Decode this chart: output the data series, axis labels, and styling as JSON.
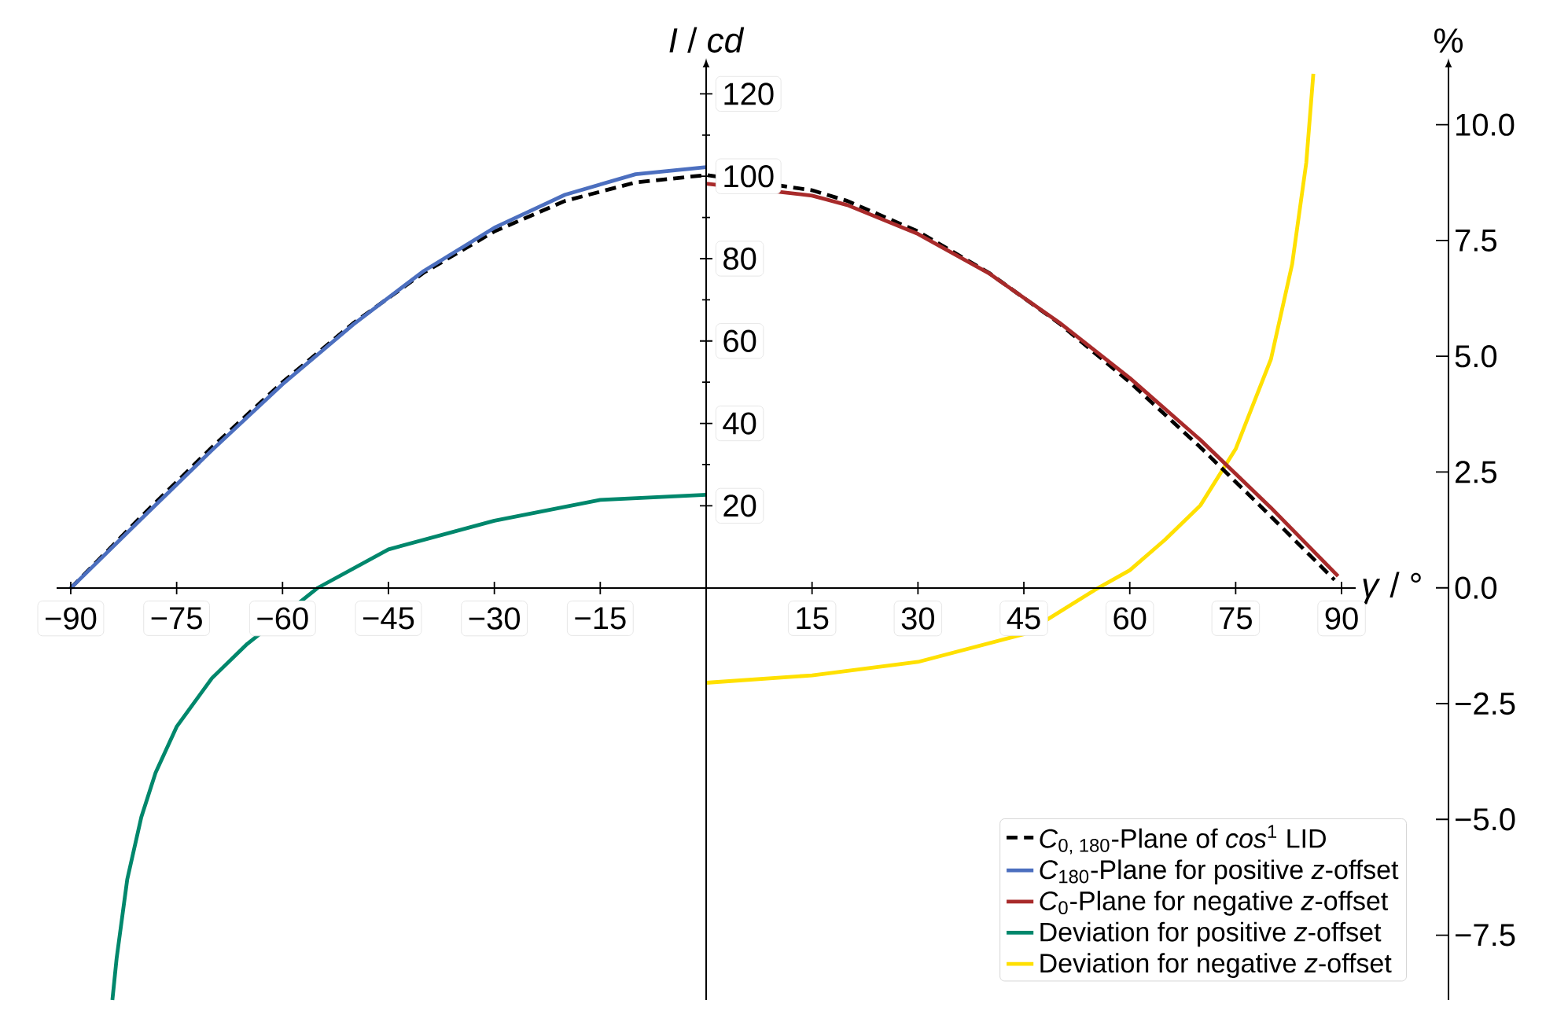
{
  "chart_data": {
    "type": "line",
    "xlabel": "*γ* / °",
    "ylabel": "*I* / *cd*",
    "y2label": "%",
    "xlim": [
      -92,
      92
    ],
    "ylim": [
      -100,
      126
    ],
    "y2lim": [
      -8.9,
      11.2
    ],
    "xticks": [
      {
        "value": -90,
        "label": "−90"
      },
      {
        "value": -75,
        "label": "−75"
      },
      {
        "value": -60,
        "label": "−60"
      },
      {
        "value": -45,
        "label": "−45"
      },
      {
        "value": -30,
        "label": "−30"
      },
      {
        "value": -15,
        "label": "−15"
      },
      15,
      30,
      45,
      60,
      75,
      90
    ],
    "yticks": [
      20,
      40,
      60,
      80,
      100,
      120
    ],
    "y2ticks": [
      {
        "value": -7.5,
        "label": "−7.5"
      },
      {
        "value": -5,
        "label": "−5.0"
      },
      {
        "value": -2.5,
        "label": "−2.5"
      },
      {
        "value": 0,
        "label": "0.0"
      },
      {
        "value": 2.5,
        "label": "2.5"
      },
      {
        "value": 5,
        "label": "5.0"
      },
      {
        "value": 7.5,
        "label": "7.5"
      },
      {
        "value": 10,
        "label": "10.0"
      }
    ],
    "legend": "bottom right",
    "series": [
      {
        "name": "*C*$_{0, 180}$-Plane of *cos*$^{1}$ LID",
        "color": "#000000",
        "line_style": "dashed",
        "x": [
          -90,
          -80,
          -70,
          -60,
          -50,
          -40,
          -30,
          -20,
          -10,
          0,
          15,
          20,
          30,
          40,
          50,
          60,
          70,
          80,
          89
        ],
        "values": [
          0,
          17.4,
          34.2,
          50,
          64.3,
          76.6,
          86.6,
          94,
          98.5,
          100.3,
          96.6,
          94,
          86.6,
          76.6,
          64.3,
          50,
          34.2,
          17.4,
          2
        ]
      },
      {
        "name": "*C*$_{180}$-Plane for positive *z*-offset",
        "color": "#4c6fbf",
        "line_style": "solid",
        "x": [
          -90,
          -80,
          -70,
          -60,
          -50,
          -40,
          -30,
          -20,
          -10,
          0
        ],
        "values": [
          0,
          16.8,
          33.5,
          49.5,
          64,
          77,
          87.5,
          95.5,
          100.5,
          102.2
        ]
      },
      {
        "name": "*C*$_{0}$-Plane for negative *z*-offset",
        "color": "#a82a2a",
        "line_style": "solid",
        "x": [
          0,
          15,
          20,
          30,
          40,
          50,
          60,
          70,
          80,
          89.5
        ],
        "values": [
          98.2,
          95.3,
          93,
          86,
          76.5,
          64.5,
          51,
          36,
          19.5,
          2.9
        ]
      },
      {
        "name": "Deviation for positive *z*-offset",
        "color": "#00876c",
        "line_style": "solid",
        "axis": "y2",
        "x": [
          -84.1,
          -83.5,
          -82,
          -80,
          -78,
          -75,
          -70,
          -65,
          -55,
          -45,
          -30,
          -15,
          0
        ],
        "values": [
          -8.9,
          -8.0,
          -6.3,
          -4.95,
          -4.0,
          -3.0,
          -1.95,
          -1.21,
          0,
          0.83,
          1.45,
          1.9,
          2.01
        ]
      },
      {
        "name": "Deviation for negative *z*-offset",
        "color": "#ffe000",
        "line_style": "solid",
        "axis": "y2",
        "x": [
          0,
          15,
          30,
          45,
          55,
          60,
          65,
          70,
          75,
          80,
          83,
          85,
          86
        ],
        "values": [
          -2.05,
          -1.89,
          -1.6,
          -1.0,
          -0.05,
          0.38,
          1.04,
          1.78,
          3.0,
          4.94,
          6.99,
          9.18,
          11.1
        ]
      }
    ]
  }
}
